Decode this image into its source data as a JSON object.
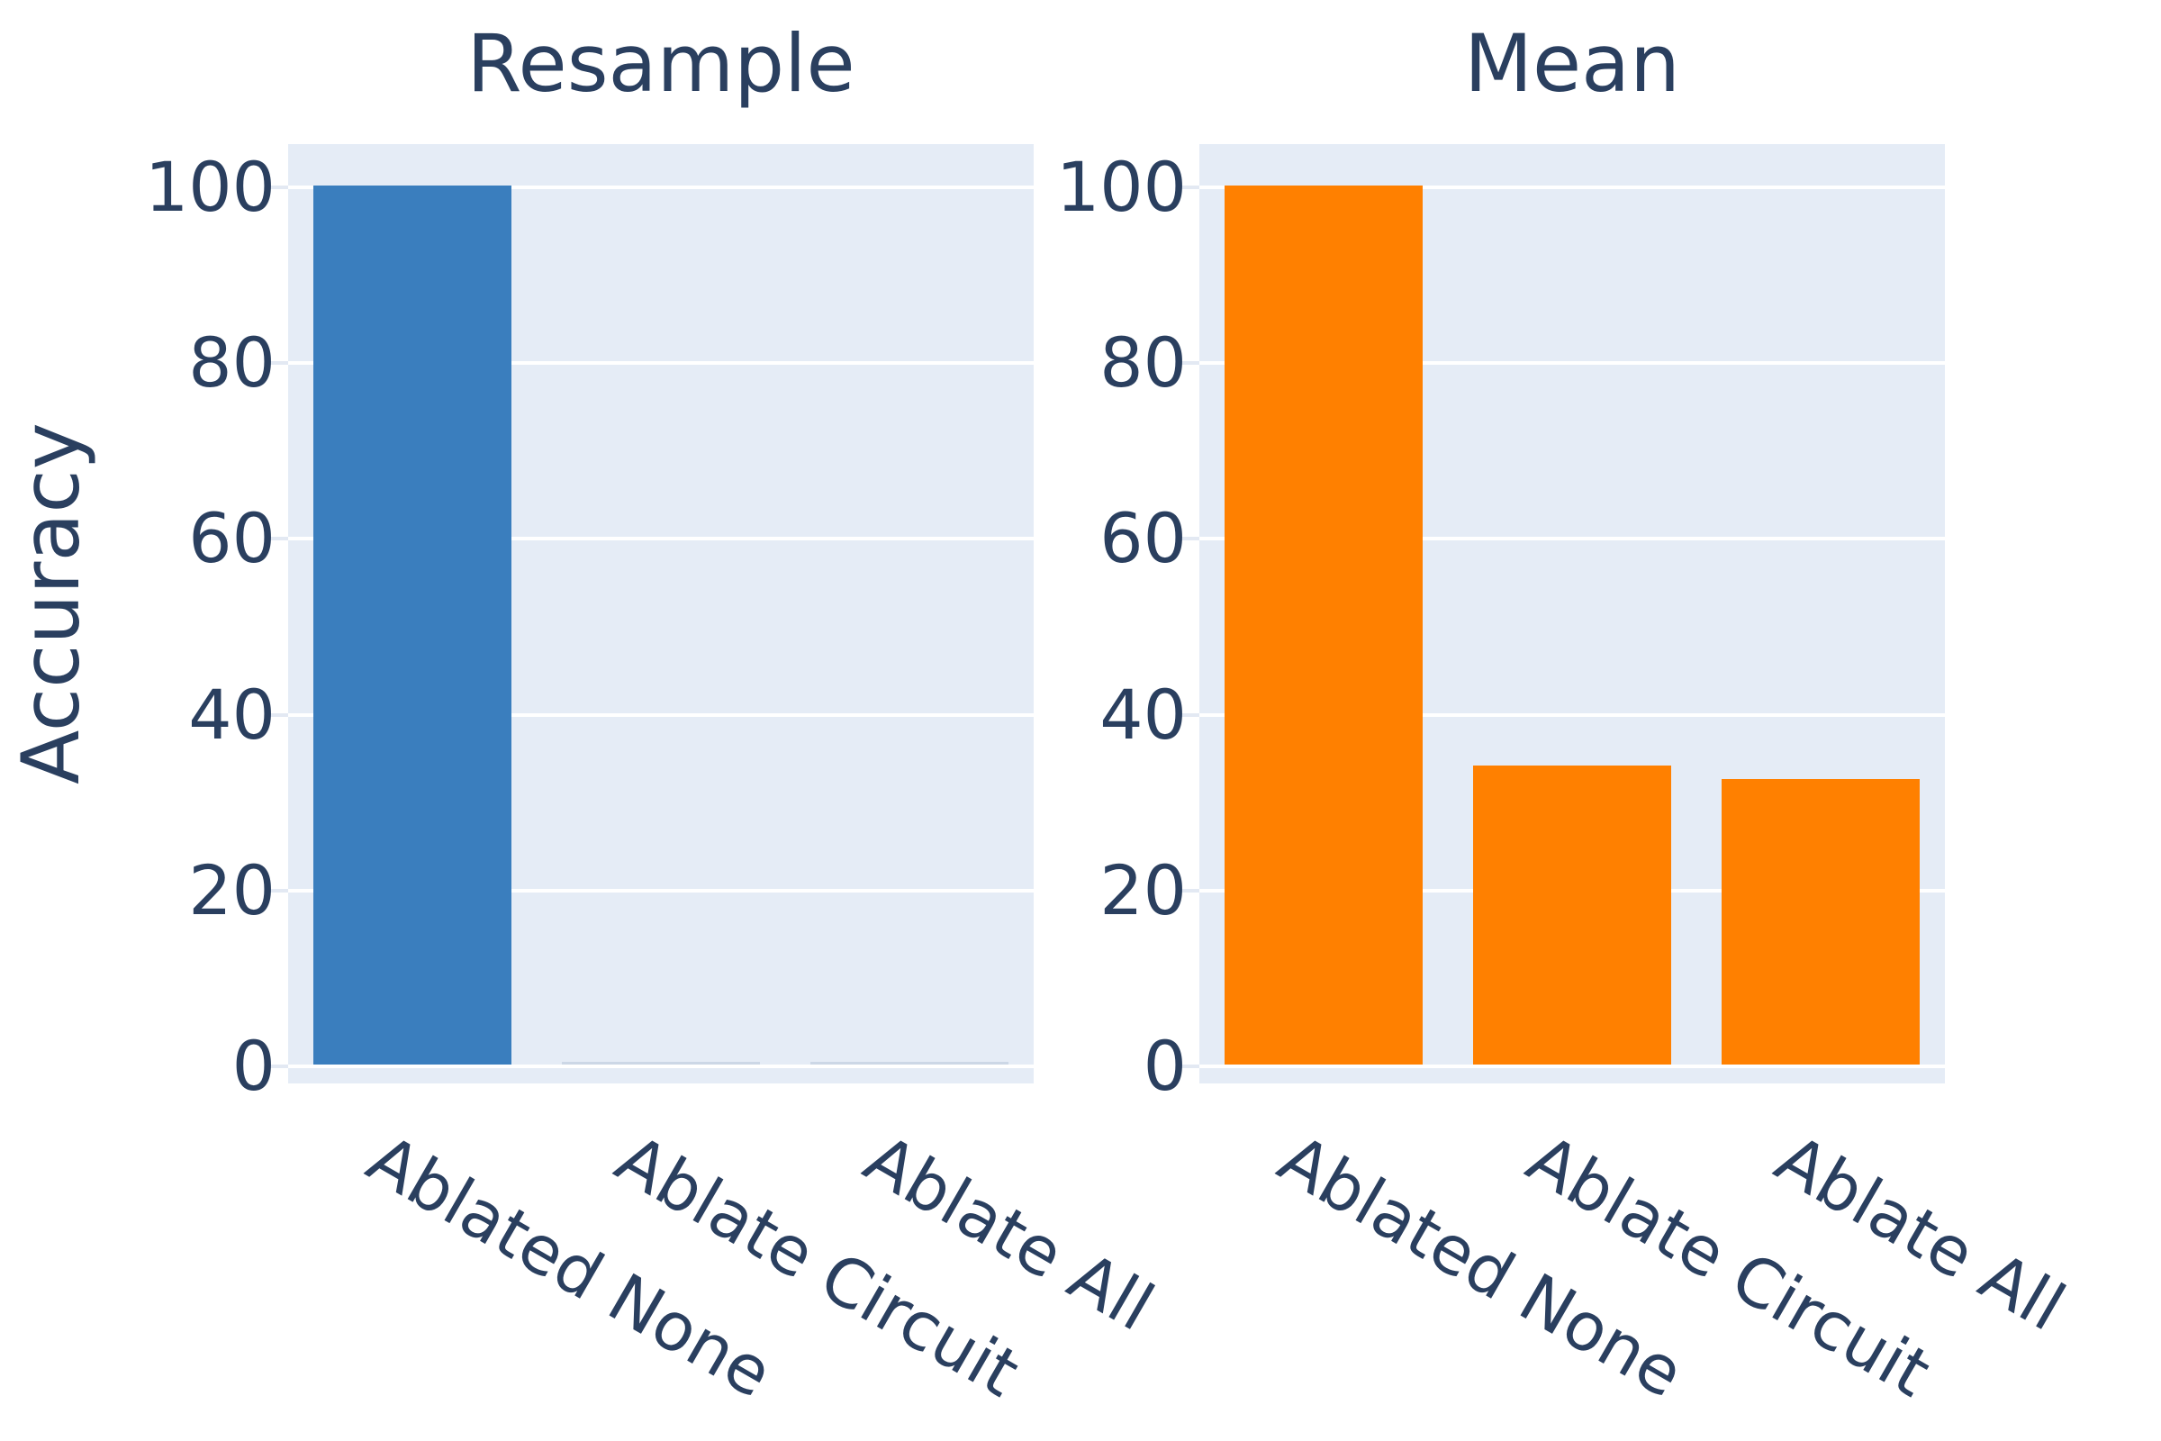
{
  "figure": {
    "background_color": "#ffffff",
    "plot_background_color": "#e5ecf6",
    "grid_color": "#ffffff",
    "text_color": "#2a3f5f"
  },
  "chart_data": [
    {
      "type": "bar",
      "title": "Resample",
      "categories": [
        "Ablated None",
        "Ablate Circuit",
        "Ablate All"
      ],
      "values": [
        100,
        0,
        0
      ],
      "bar_color": "#3a7ebe",
      "ylabel": "Accuracy",
      "xlabel": "",
      "yticks": [
        0,
        20,
        40,
        60,
        80,
        100
      ],
      "ylim": [
        -1.9,
        104.9
      ],
      "grid": "horizontal-white",
      "legend": "none",
      "xtick_rotation_deg": 30
    },
    {
      "type": "bar",
      "title": "Mean",
      "categories": [
        "Ablated None",
        "Ablate Circuit",
        "Ablate All"
      ],
      "values": [
        100,
        34,
        32.5
      ],
      "bar_color": "#ff8000",
      "ylabel": "Accuracy",
      "xlabel": "",
      "yticks": [
        0,
        20,
        40,
        60,
        80,
        100
      ],
      "ylim": [
        -1.9,
        104.9
      ],
      "grid": "horizontal-white",
      "legend": "none",
      "xtick_rotation_deg": 30
    }
  ]
}
